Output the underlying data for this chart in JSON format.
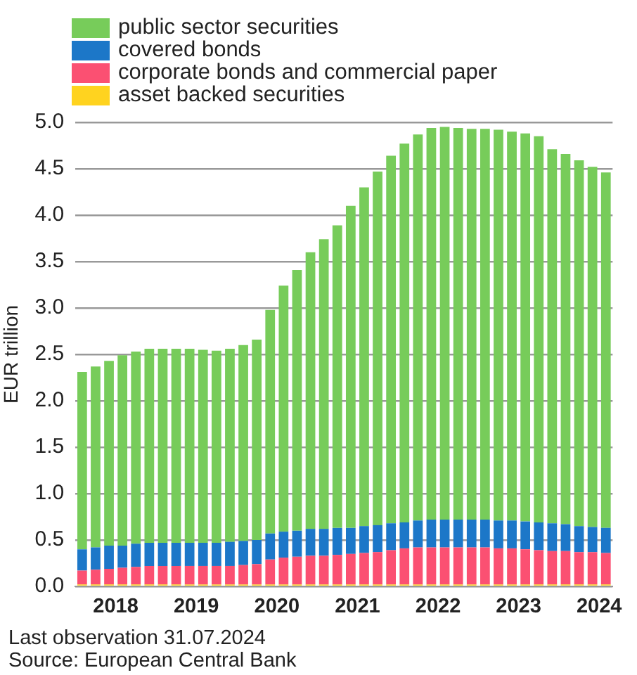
{
  "chart_data": {
    "type": "bar",
    "stacked": true,
    "ylabel": "EUR trillion",
    "legend": "top left",
    "grid": "y",
    "categories": [
      null,
      null,
      null,
      "2018",
      null,
      null,
      null,
      null,
      null,
      "2019",
      null,
      null,
      null,
      null,
      null,
      "2020",
      null,
      null,
      null,
      null,
      null,
      "2021",
      null,
      null,
      null,
      null,
      null,
      "2022",
      null,
      null,
      null,
      null,
      null,
      "2023",
      null,
      null,
      null,
      null,
      null,
      "2024"
    ],
    "ylim": [
      0,
      5
    ],
    "yticks": [
      {
        "value": 0,
        "label": "0.0"
      },
      {
        "value": 0.5,
        "label": "0.5"
      },
      {
        "value": 1,
        "label": "1.0"
      },
      {
        "value": 1.5,
        "label": "1.5"
      },
      {
        "value": 2,
        "label": "2.0"
      },
      {
        "value": 2.5,
        "label": "2.5"
      },
      {
        "value": 3,
        "label": "3.0"
      },
      {
        "value": 3.5,
        "label": "3.5"
      },
      {
        "value": 4,
        "label": "4.0"
      },
      {
        "value": 4.5,
        "label": "4.5"
      },
      {
        "value": 5,
        "label": "5.0"
      }
    ],
    "series": [
      {
        "name": "asset backed securities",
        "color": "#ffd31f",
        "values": [
          0.02,
          0.02,
          0.02,
          0.02,
          0.02,
          0.02,
          0.02,
          0.02,
          0.02,
          0.02,
          0.02,
          0.02,
          0.02,
          0.02,
          0.02,
          0.02,
          0.02,
          0.02,
          0.02,
          0.02,
          0.02,
          0.02,
          0.02,
          0.02,
          0.02,
          0.02,
          0.02,
          0.02,
          0.02,
          0.02,
          0.02,
          0.02,
          0.02,
          0.02,
          0.02,
          0.02,
          0.02,
          0.02,
          0.02,
          0.02
        ]
      },
      {
        "name": "corporate bonds and commercial paper",
        "color": "#fb5072",
        "values": [
          0.15,
          0.16,
          0.17,
          0.18,
          0.19,
          0.2,
          0.2,
          0.2,
          0.2,
          0.2,
          0.2,
          0.2,
          0.21,
          0.22,
          0.27,
          0.29,
          0.3,
          0.31,
          0.31,
          0.32,
          0.33,
          0.34,
          0.35,
          0.37,
          0.39,
          0.4,
          0.4,
          0.4,
          0.4,
          0.4,
          0.4,
          0.39,
          0.39,
          0.38,
          0.37,
          0.36,
          0.36,
          0.35,
          0.35,
          0.34
        ]
      },
      {
        "name": "covered bonds",
        "color": "#1c77c8",
        "values": [
          0.23,
          0.24,
          0.25,
          0.24,
          0.25,
          0.25,
          0.25,
          0.25,
          0.25,
          0.25,
          0.25,
          0.26,
          0.26,
          0.26,
          0.28,
          0.28,
          0.28,
          0.29,
          0.29,
          0.29,
          0.28,
          0.29,
          0.29,
          0.29,
          0.28,
          0.29,
          0.3,
          0.3,
          0.3,
          0.3,
          0.3,
          0.3,
          0.3,
          0.3,
          0.3,
          0.3,
          0.29,
          0.28,
          0.27,
          0.27
        ]
      },
      {
        "name": "public sector securities",
        "color": "#77cc5a",
        "values": [
          1.91,
          1.95,
          1.99,
          2.05,
          2.07,
          2.09,
          2.09,
          2.09,
          2.09,
          2.08,
          2.07,
          2.08,
          2.11,
          2.16,
          2.41,
          2.65,
          2.81,
          2.98,
          3.12,
          3.26,
          3.47,
          3.65,
          3.81,
          3.96,
          4.08,
          4.16,
          4.22,
          4.23,
          4.22,
          4.21,
          4.21,
          4.21,
          4.19,
          4.18,
          4.16,
          4.03,
          3.99,
          3.94,
          3.88,
          3.83
        ]
      }
    ],
    "annotations": [
      "Last observation 31.07.2024",
      "Source: European Central Bank"
    ]
  }
}
